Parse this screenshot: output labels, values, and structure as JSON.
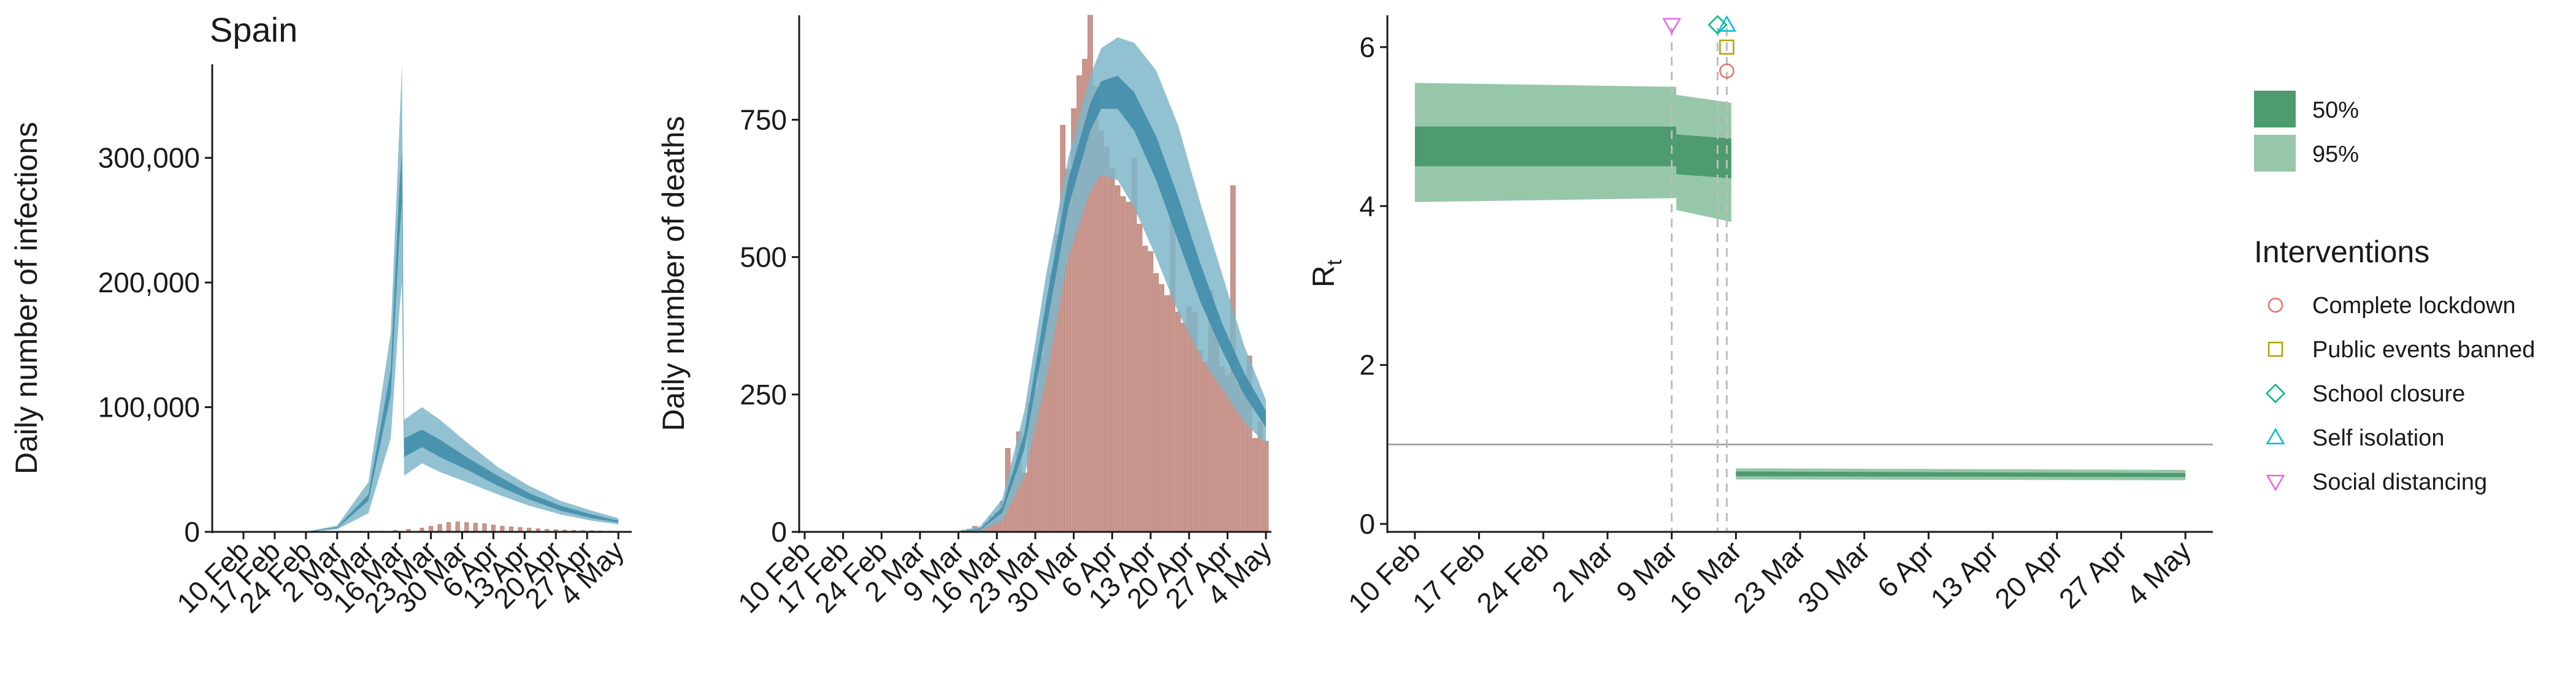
{
  "chart_data": [
    {
      "type": "area",
      "title": "Spain",
      "xlabel": "",
      "ylabel": "Daily number of infections",
      "ylim": [
        0,
        375000
      ],
      "yticks": [
        0,
        100000,
        200000,
        300000
      ],
      "ytick_labels": [
        "0",
        "100,000",
        "200,000",
        "300,000"
      ],
      "xticks": [
        "10 Feb",
        "17 Feb",
        "24 Feb",
        "2 Mar",
        "9 Mar",
        "16 Mar",
        "23 Mar",
        "30 Mar",
        "6 Apr",
        "13 Apr",
        "20 Apr",
        "27 Apr",
        "4 May"
      ],
      "xlim_days": [
        -7,
        87
      ],
      "colors": {
        "band95": "#7fb6c9",
        "band50": "#3d8ba9",
        "bars": "#c9958c"
      },
      "series": [
        {
          "name": "95%",
          "x": [
            0,
            14,
            21,
            28,
            33,
            35,
            35.5,
            36,
            40,
            44,
            50,
            57,
            64,
            71,
            78,
            84
          ],
          "lower": [
            0,
            50,
            2000,
            15000,
            75000,
            180000,
            200000,
            45000,
            55000,
            48000,
            40000,
            30000,
            21000,
            14000,
            9000,
            6000
          ],
          "upper": [
            0,
            200,
            5000,
            40000,
            160000,
            330000,
            375000,
            90000,
            100000,
            90000,
            72000,
            52000,
            37000,
            25000,
            17000,
            11000
          ]
        },
        {
          "name": "50%",
          "x": [
            0,
            14,
            21,
            28,
            33,
            35,
            35.5,
            36,
            40,
            44,
            50,
            57,
            64,
            71,
            78,
            84
          ],
          "lower": [
            0,
            100,
            3000,
            25000,
            110000,
            240000,
            265000,
            60000,
            68000,
            60000,
            50000,
            37000,
            26000,
            17000,
            11000,
            7500
          ],
          "upper": [
            0,
            140,
            3800,
            30000,
            130000,
            280000,
            305000,
            75000,
            82000,
            74000,
            60000,
            45000,
            31000,
            21000,
            14000,
            9000
          ]
        }
      ],
      "observed": [
        {
          "x": 28,
          "y": 200
        },
        {
          "x": 31,
          "y": 600
        },
        {
          "x": 34,
          "y": 1200
        },
        {
          "x": 37,
          "y": 2000
        },
        {
          "x": 40,
          "y": 3000
        },
        {
          "x": 42,
          "y": 4500
        },
        {
          "x": 44,
          "y": 6000
        },
        {
          "x": 46,
          "y": 7500
        },
        {
          "x": 48,
          "y": 8000
        },
        {
          "x": 50,
          "y": 7500
        },
        {
          "x": 52,
          "y": 7000
        },
        {
          "x": 54,
          "y": 6500
        },
        {
          "x": 56,
          "y": 5500
        },
        {
          "x": 58,
          "y": 4500
        },
        {
          "x": 60,
          "y": 4000
        },
        {
          "x": 62,
          "y": 3500
        },
        {
          "x": 64,
          "y": 3000
        },
        {
          "x": 66,
          "y": 2500
        },
        {
          "x": 68,
          "y": 2000
        },
        {
          "x": 70,
          "y": 1800
        },
        {
          "x": 72,
          "y": 1500
        },
        {
          "x": 74,
          "y": 1200
        },
        {
          "x": 76,
          "y": 1000
        },
        {
          "x": 78,
          "y": 900
        },
        {
          "x": 80,
          "y": 700
        },
        {
          "x": 82,
          "y": 600
        },
        {
          "x": 84,
          "y": 500
        }
      ]
    },
    {
      "type": "bar",
      "title": "",
      "xlabel": "",
      "ylabel": "Daily number of deaths",
      "ylim": [
        0,
        940
      ],
      "yticks": [
        0,
        250,
        500,
        750
      ],
      "ytick_labels": [
        "0",
        "250",
        "500",
        "750"
      ],
      "xticks": [
        "10 Feb",
        "17 Feb",
        "24 Feb",
        "2 Mar",
        "9 Mar",
        "16 Mar",
        "23 Mar",
        "30 Mar",
        "6 Apr",
        "13 Apr",
        "20 Apr",
        "27 Apr",
        "4 May"
      ],
      "xlim_days": [
        -1,
        85
      ],
      "colors": {
        "band95": "#7fb6c9",
        "band50": "#3d8ba9",
        "bars": "#c9958c"
      },
      "series": [
        {
          "name": "95%",
          "x": [
            28,
            32,
            36,
            40,
            44,
            48,
            52,
            54,
            57,
            60,
            64,
            68,
            72,
            76,
            80,
            84
          ],
          "lower": [
            0,
            2,
            20,
            100,
            280,
            500,
            620,
            650,
            640,
            590,
            500,
            400,
            320,
            260,
            200,
            160
          ],
          "upper": [
            1,
            10,
            60,
            220,
            470,
            680,
            830,
            880,
            900,
            890,
            840,
            740,
            600,
            470,
            340,
            240
          ]
        },
        {
          "name": "50%",
          "x": [
            28,
            32,
            36,
            40,
            44,
            48,
            52,
            54,
            57,
            60,
            64,
            68,
            72,
            76,
            80,
            84
          ],
          "lower": [
            0,
            4,
            35,
            150,
            370,
            590,
            730,
            770,
            770,
            730,
            640,
            530,
            420,
            330,
            250,
            190
          ],
          "upper": [
            0,
            6,
            45,
            180,
            420,
            640,
            780,
            820,
            830,
            800,
            720,
            610,
            490,
            380,
            290,
            220
          ]
        }
      ],
      "observed": [
        {
          "x": 29,
          "y": 3
        },
        {
          "x": 30,
          "y": 5
        },
        {
          "x": 31,
          "y": 10
        },
        {
          "x": 32,
          "y": 7
        },
        {
          "x": 33,
          "y": 17
        },
        {
          "x": 34,
          "y": 28
        },
        {
          "x": 35,
          "y": 35
        },
        {
          "x": 36,
          "y": 55
        },
        {
          "x": 37,
          "y": 152
        },
        {
          "x": 38,
          "y": 100
        },
        {
          "x": 39,
          "y": 182
        },
        {
          "x": 40,
          "y": 107
        },
        {
          "x": 41,
          "y": 235
        },
        {
          "x": 42,
          "y": 262
        },
        {
          "x": 43,
          "y": 320
        },
        {
          "x": 44,
          "y": 395
        },
        {
          "x": 45,
          "y": 470
        },
        {
          "x": 46,
          "y": 540
        },
        {
          "x": 47,
          "y": 740
        },
        {
          "x": 48,
          "y": 660
        },
        {
          "x": 49,
          "y": 770
        },
        {
          "x": 50,
          "y": 830
        },
        {
          "x": 51,
          "y": 860
        },
        {
          "x": 52,
          "y": 940
        },
        {
          "x": 53,
          "y": 810
        },
        {
          "x": 54,
          "y": 730
        },
        {
          "x": 55,
          "y": 700
        },
        {
          "x": 56,
          "y": 660
        },
        {
          "x": 57,
          "y": 630
        },
        {
          "x": 58,
          "y": 610
        },
        {
          "x": 59,
          "y": 600
        },
        {
          "x": 60,
          "y": 680
        },
        {
          "x": 61,
          "y": 560
        },
        {
          "x": 62,
          "y": 520
        },
        {
          "x": 63,
          "y": 510
        },
        {
          "x": 64,
          "y": 470
        },
        {
          "x": 65,
          "y": 450
        },
        {
          "x": 66,
          "y": 430
        },
        {
          "x": 67,
          "y": 565
        },
        {
          "x": 68,
          "y": 400
        },
        {
          "x": 69,
          "y": 380
        },
        {
          "x": 70,
          "y": 410
        },
        {
          "x": 71,
          "y": 400
        },
        {
          "x": 72,
          "y": 330
        },
        {
          "x": 73,
          "y": 310
        },
        {
          "x": 74,
          "y": 440
        },
        {
          "x": 75,
          "y": 370
        },
        {
          "x": 76,
          "y": 300
        },
        {
          "x": 77,
          "y": 285
        },
        {
          "x": 78,
          "y": 630
        },
        {
          "x": 79,
          "y": 270
        },
        {
          "x": 80,
          "y": 280
        },
        {
          "x": 81,
          "y": 320
        },
        {
          "x": 82,
          "y": 170
        },
        {
          "x": 83,
          "y": 200
        },
        {
          "x": 84,
          "y": 165
        }
      ]
    },
    {
      "type": "area",
      "title": "",
      "xlabel": "",
      "ylabel": "R",
      "ylabel_subscript": "t",
      "ylim": [
        -0.1,
        6.4
      ],
      "yticks": [
        0,
        2,
        4,
        6
      ],
      "ytick_labels": [
        "0",
        "2",
        "4",
        "6"
      ],
      "xticks": [
        "10 Feb",
        "17 Feb",
        "24 Feb",
        "2 Mar",
        "9 Mar",
        "16 Mar",
        "23 Mar",
        "30 Mar",
        "6 Apr",
        "13 Apr",
        "20 Apr",
        "27 Apr",
        "4 May"
      ],
      "xlim_days": [
        -3,
        87
      ],
      "reference_line": 1,
      "colors": {
        "band95": "#97c7a9",
        "band50": "#4d9b6e",
        "refline": "#9a9a9a",
        "vline": "#bdbdbd"
      },
      "bands": [
        {
          "name": "95%",
          "segments": [
            {
              "x": [
                0,
                28.5
              ],
              "lower": [
                4.05,
                4.1
              ],
              "upper": [
                5.55,
                5.5
              ]
            },
            {
              "x": [
                28.5,
                34.5
              ],
              "lower": [
                3.95,
                3.8
              ],
              "upper": [
                5.4,
                5.3
              ]
            },
            {
              "x": [
                35,
                84
              ],
              "lower": [
                0.56,
                0.55
              ],
              "upper": [
                0.7,
                0.68
              ]
            }
          ]
        },
        {
          "name": "50%",
          "segments": [
            {
              "x": [
                0,
                28.5
              ],
              "lower": [
                4.5,
                4.5
              ],
              "upper": [
                5.0,
                5.0
              ]
            },
            {
              "x": [
                28.5,
                34.5
              ],
              "lower": [
                4.4,
                4.35
              ],
              "upper": [
                4.9,
                4.85
              ]
            },
            {
              "x": [
                35,
                84
              ],
              "lower": [
                0.6,
                0.59
              ],
              "upper": [
                0.66,
                0.64
              ]
            }
          ]
        }
      ],
      "intervention_dates": [
        28,
        33,
        34,
        34,
        34
      ],
      "markers": [
        {
          "name": "Complete lockdown",
          "shape": "circle",
          "color": "#e8736c",
          "x": 34,
          "y": 5.7
        },
        {
          "name": "Public events banned",
          "shape": "square",
          "color": "#b3a000",
          "x": 34,
          "y": 6.0
        },
        {
          "name": "School closure",
          "shape": "diamond",
          "color": "#00b885",
          "x": 33,
          "y": 6.28
        },
        {
          "name": "Self isolation",
          "shape": "triangle",
          "color": "#00bcd8",
          "x": 34,
          "y": 6.28
        },
        {
          "name": "Social distancing",
          "shape": "triangle-down",
          "color": "#e46ae0",
          "x": 28,
          "y": 6.28
        }
      ]
    }
  ],
  "legend": {
    "bands": [
      {
        "label": "50%",
        "color": "#4d9b6e"
      },
      {
        "label": "95%",
        "color": "#97c7a9"
      }
    ],
    "interventions_title": "Interventions",
    "interventions": [
      {
        "label": "Complete lockdown",
        "shape": "circle",
        "color": "#e8736c"
      },
      {
        "label": "Public events banned",
        "shape": "square",
        "color": "#b3a000"
      },
      {
        "label": "School closure",
        "shape": "diamond",
        "color": "#00b885"
      },
      {
        "label": "Self isolation",
        "shape": "triangle",
        "color": "#00bcd8"
      },
      {
        "label": "Social distancing",
        "shape": "triangle-down",
        "color": "#e46ae0"
      }
    ]
  }
}
